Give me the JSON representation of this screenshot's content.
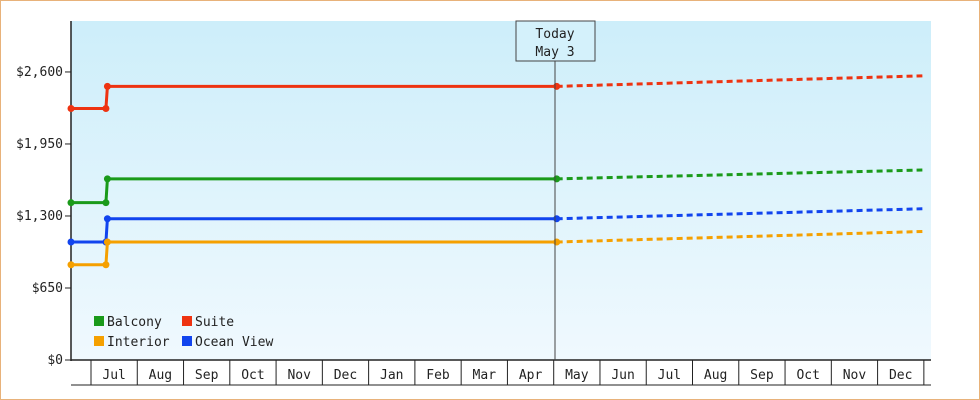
{
  "chart_data": {
    "type": "line",
    "title": "",
    "xlabel": "",
    "ylabel": "",
    "ylim": [
      0,
      3060
    ],
    "y_ticks": [
      {
        "value": 0,
        "label": "$0"
      },
      {
        "value": 650,
        "label": "$650"
      },
      {
        "value": 1300,
        "label": "$1,300"
      },
      {
        "value": 1950,
        "label": "$1,950"
      },
      {
        "value": 2600,
        "label": "$2,600"
      }
    ],
    "x_labels": [
      "Jul",
      "Aug",
      "Sep",
      "Oct",
      "Nov",
      "Dec",
      "Jan",
      "Feb",
      "Mar",
      "Apr",
      "May",
      "Jun",
      "Jul",
      "Aug",
      "Sep",
      "Oct",
      "Nov",
      "Dec"
    ],
    "grid": false,
    "background_gradient": [
      "#cdeefa",
      "#f0f9fe"
    ],
    "today_marker": {
      "line1": "Today",
      "line2": "May 3"
    },
    "legend": {
      "placement": "bottom-left",
      "rows": [
        [
          "Balcony",
          "Suite"
        ],
        [
          "Interior",
          "Ocean View"
        ]
      ]
    },
    "series": [
      {
        "name": "Balcony",
        "color": "#1a9a1a",
        "history": [
          {
            "x": "Jun 13",
            "y": 1420
          },
          {
            "x": "Jul 11",
            "y": 1420
          },
          {
            "x": "Jul 12",
            "y": 1635
          },
          {
            "x": "May 3",
            "y": 1635
          }
        ],
        "forecast": [
          {
            "x": "May 3",
            "y": 1635
          },
          {
            "x": "Dec 31",
            "y": 1715
          }
        ]
      },
      {
        "name": "Suite",
        "color": "#ee3311",
        "history": [
          {
            "x": "Jun 13",
            "y": 2270
          },
          {
            "x": "Jul 11",
            "y": 2270
          },
          {
            "x": "Jul 12",
            "y": 2470
          },
          {
            "x": "May 3",
            "y": 2470
          }
        ],
        "forecast": [
          {
            "x": "May 3",
            "y": 2470
          },
          {
            "x": "Dec 31",
            "y": 2565
          }
        ]
      },
      {
        "name": "Ocean View",
        "color": "#1144ee",
        "history": [
          {
            "x": "Jun 13",
            "y": 1065
          },
          {
            "x": "Jul 11",
            "y": 1065
          },
          {
            "x": "Jul 12",
            "y": 1275
          },
          {
            "x": "May 3",
            "y": 1275
          }
        ],
        "forecast": [
          {
            "x": "May 3",
            "y": 1275
          },
          {
            "x": "Dec 31",
            "y": 1365
          }
        ]
      },
      {
        "name": "Interior",
        "color": "#f5a000",
        "history": [
          {
            "x": "Jun 13",
            "y": 860
          },
          {
            "x": "Jul 11",
            "y": 860
          },
          {
            "x": "Jul 12",
            "y": 1065
          },
          {
            "x": "May 3",
            "y": 1065
          }
        ],
        "forecast": [
          {
            "x": "May 3",
            "y": 1065
          },
          {
            "x": "Dec 31",
            "y": 1160
          }
        ]
      }
    ]
  }
}
